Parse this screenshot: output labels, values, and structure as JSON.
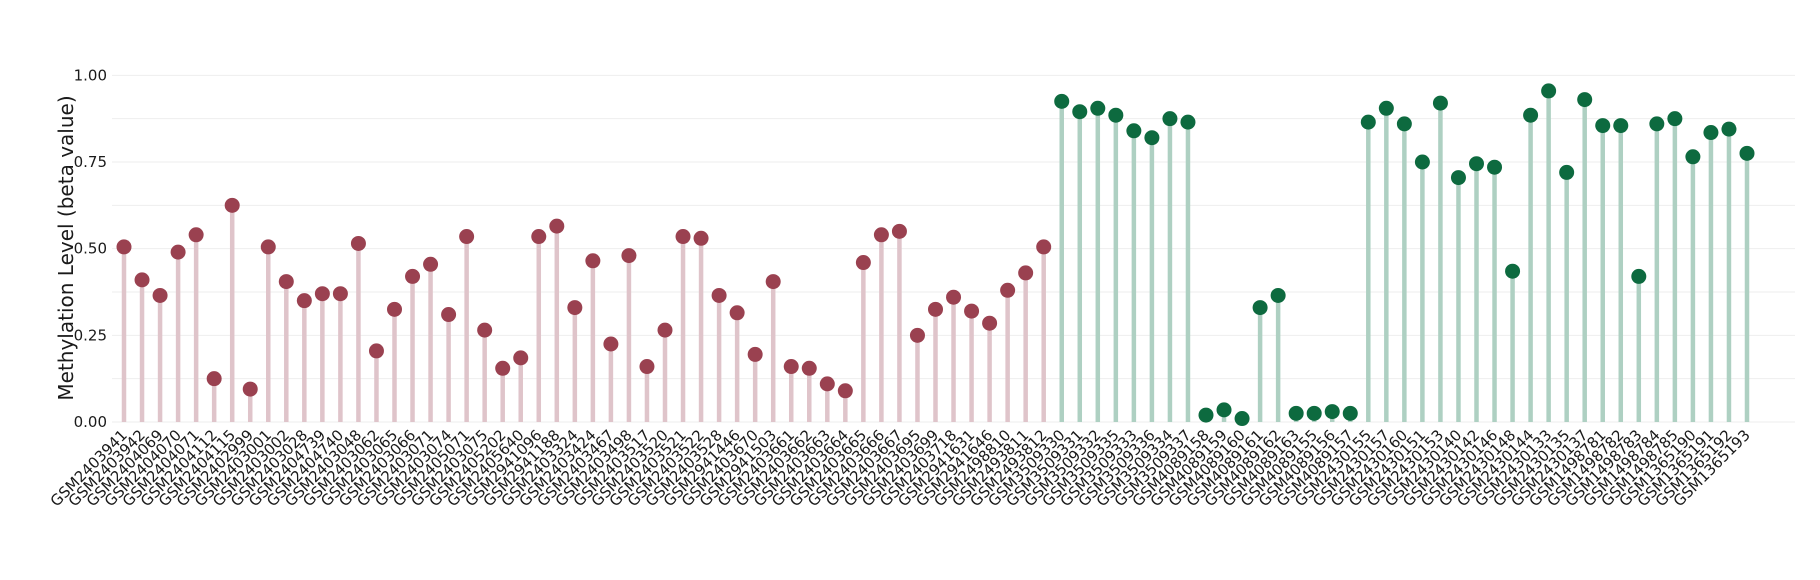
{
  "chart_data": {
    "type": "lollipop",
    "ylabel": "Methylation Level (beta value)",
    "ylim": [
      0,
      1.05
    ],
    "y_ticks": [
      0.0,
      0.25,
      0.5,
      0.75,
      1.0
    ],
    "y_tick_labels": [
      "0.00",
      "0.25",
      "0.50",
      "0.75",
      "1.00"
    ],
    "grid": true,
    "colors": {
      "group1_stem": "#dfc4ca",
      "group1_dot": "#9a4150",
      "group2_stem": "#aed0c2",
      "group2_dot": "#0d6a3f",
      "grid": "#eeeeee"
    },
    "samples": [
      "GSM2403941",
      "GSM2403942",
      "GSM2404069",
      "GSM2404070",
      "GSM2404071",
      "GSM2404112",
      "GSM2404115",
      "GSM2402999",
      "GSM2403001",
      "GSM2403002",
      "GSM2403028",
      "GSM2404739",
      "GSM2404740",
      "GSM2403048",
      "GSM2403062",
      "GSM2403065",
      "GSM2403066",
      "GSM2403071",
      "GSM2403074",
      "GSM2405071",
      "GSM2403075",
      "GSM2405202",
      "GSM2405640",
      "GSM2941096",
      "GSM2941188",
      "GSM2403324",
      "GSM2403424",
      "GSM2403467",
      "GSM2403498",
      "GSM2403517",
      "GSM2403520",
      "GSM2403521",
      "GSM2403522",
      "GSM2403528",
      "GSM2941446",
      "GSM2403670",
      "GSM2941503",
      "GSM2403661",
      "GSM2403662",
      "GSM2403663",
      "GSM2403664",
      "GSM2403665",
      "GSM2403666",
      "GSM2403667",
      "GSM2403695",
      "GSM2403699",
      "GSM2403718",
      "GSM2941631",
      "GSM2941646",
      "GSM2498810",
      "GSM2493811",
      "GSM2493812",
      "GSM3509330",
      "GSM3509331",
      "GSM3509332",
      "GSM3509335",
      "GSM3509333",
      "GSM3509336",
      "GSM3509334",
      "GSM3509337",
      "GSM4089158",
      "GSM4089159",
      "GSM4089160",
      "GSM4089161",
      "GSM4089162",
      "GSM4089163",
      "GSM4089155",
      "GSM4089156",
      "GSM4089157",
      "GSM2430155",
      "GSM2430157",
      "GSM2430160",
      "GSM2430151",
      "GSM2430153",
      "GSM2430140",
      "GSM2430142",
      "GSM2430146",
      "GSM2430148",
      "GSM2430144",
      "GSM2430133",
      "GSM2430135",
      "GSM2430137",
      "GSM1498781",
      "GSM1498782",
      "GSM1498783",
      "GSM1498784",
      "GSM1498785",
      "GSM1365190",
      "GSM1365191",
      "GSM1365192",
      "GSM1365193"
    ],
    "series": [
      {
        "values": [
          0.505,
          0.41,
          0.365,
          0.49,
          0.54,
          0.125,
          0.625,
          0.095,
          0.505,
          0.405,
          0.35,
          0.37,
          0.37,
          0.515,
          0.205,
          0.325,
          0.42,
          0.455,
          0.31,
          0.535,
          0.265,
          0.155,
          0.185,
          0.535,
          0.565,
          0.33,
          0.465,
          0.225,
          0.48,
          0.16,
          0.265,
          0.535,
          0.53,
          0.365,
          0.315,
          0.195,
          0.405,
          0.16,
          0.155,
          0.11,
          0.09,
          0.46,
          0.54,
          0.55,
          0.25,
          0.325,
          0.36,
          0.32,
          0.285,
          0.38,
          0.43,
          0.505
        ]
      },
      {
        "values": [
          0.925,
          0.895,
          0.905,
          0.885,
          0.84,
          0.82,
          0.875,
          0.865,
          0.02,
          0.035,
          0.01,
          0.33,
          0.365,
          0.025,
          0.025,
          0.03,
          0.025,
          0.865,
          0.905,
          0.86,
          0.75,
          0.92,
          0.705,
          0.745,
          0.735,
          0.435,
          0.885,
          0.955,
          0.72,
          0.93,
          0.855,
          0.855,
          0.42,
          0.86,
          0.875,
          0.765,
          0.835,
          0.845,
          0.775
        ]
      }
    ]
  }
}
